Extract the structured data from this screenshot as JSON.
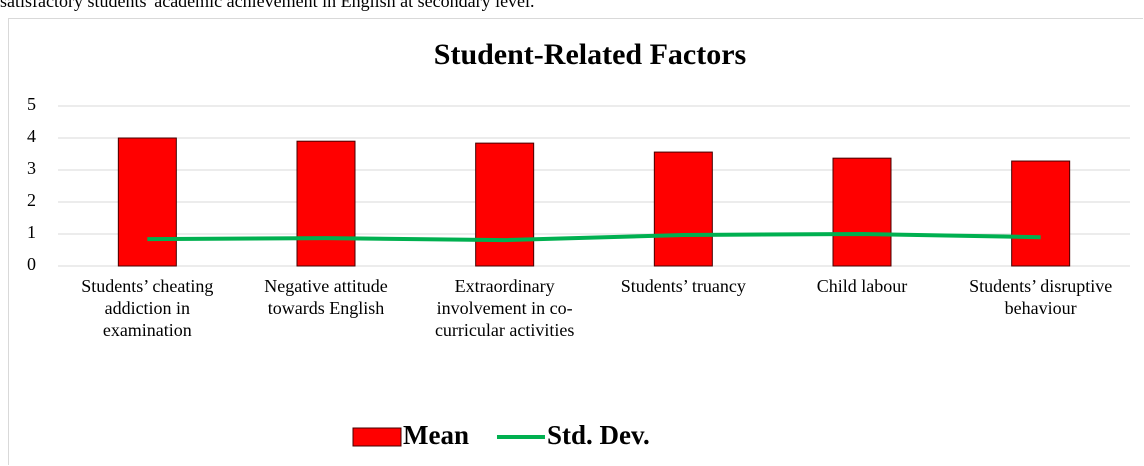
{
  "caption": "satisfactory students' academic achievement in English at secondary level.",
  "chart_data": {
    "type": "bar",
    "title": "Student-Related Factors",
    "categories": [
      "Students’ cheating addiction in examination",
      "Negative attitude towards English",
      "Extraordinary involvement in co-curricular activities",
      "Students’ truancy",
      "Child labour",
      "Students’ disruptive behaviour"
    ],
    "series": [
      {
        "name": "Mean",
        "type": "bar",
        "color": "#ff0000",
        "values": [
          4.0,
          3.9,
          3.84,
          3.56,
          3.37,
          3.28
        ]
      },
      {
        "name": "Std. Dev.",
        "type": "line",
        "color": "#00b050",
        "values": [
          0.84,
          0.87,
          0.81,
          0.97,
          1.0,
          0.9
        ]
      }
    ],
    "ylim": [
      0,
      5
    ],
    "yticks": [
      0,
      1,
      2,
      3,
      4,
      5
    ],
    "grid": true,
    "legend": "bottom"
  }
}
